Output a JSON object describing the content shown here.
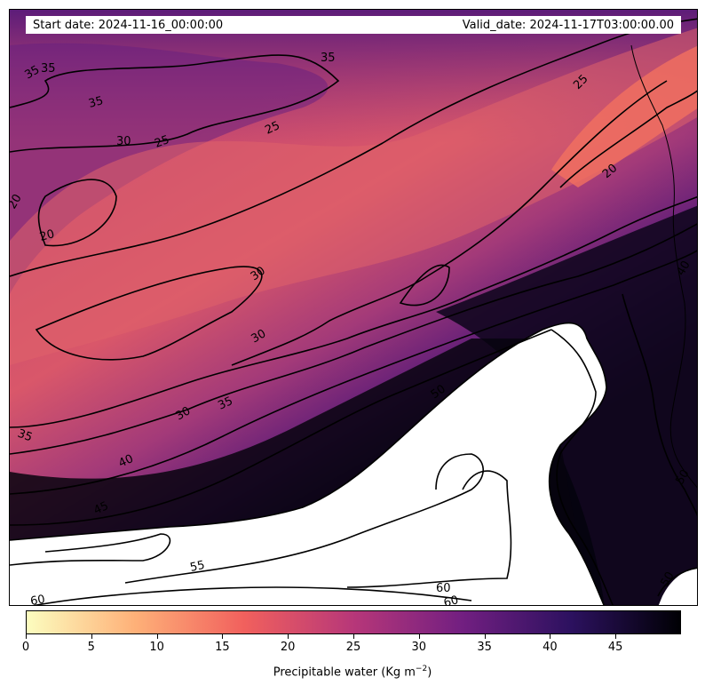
{
  "header": {
    "start_date": "Start date: 2024-11-16_00:00:00",
    "valid_date": "Valid_date: 2024-11-17T03:00:00.00"
  },
  "colorbar": {
    "label": "Precipitable water (Kg m",
    "label_exponent": "−2",
    "label_close": ")",
    "min": 0,
    "max": 50,
    "ticks": [
      "0",
      "5",
      "10",
      "15",
      "20",
      "25",
      "30",
      "35",
      "40",
      "45"
    ],
    "colors": [
      "#fcfdbf",
      "#feb078",
      "#f1605d",
      "#b73779",
      "#721f81",
      "#2c115f",
      "#000004"
    ]
  },
  "map": {
    "variable": "precipitable water",
    "contour_labels": [
      "35",
      "35",
      "35",
      "35",
      "25",
      "30",
      "25",
      "25",
      "20",
      "20",
      "20",
      "30",
      "30",
      "30",
      "35",
      "35",
      "40",
      "45",
      "50",
      "55",
      "60",
      "60",
      "60",
      "40",
      "50",
      "50"
    ],
    "masked_region_color": "#ffffff"
  }
}
